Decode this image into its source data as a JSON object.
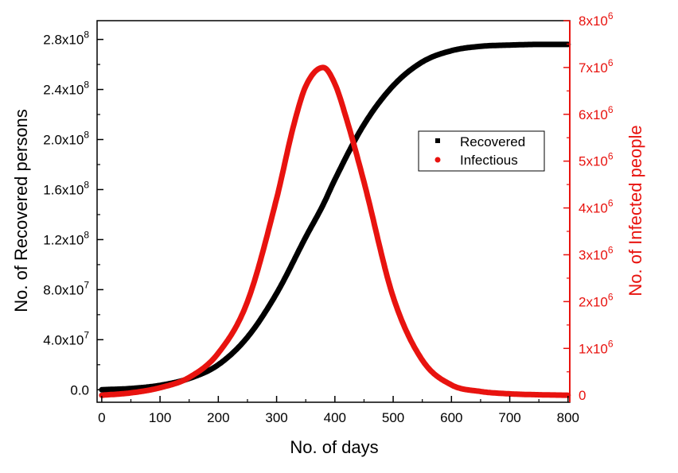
{
  "chart_data": {
    "type": "line",
    "title": "",
    "xlabel": "No. of days",
    "ylabel_left": "No. of Recovered persons",
    "ylabel_right": "No. of Infected people",
    "xlim": [
      -8,
      803
    ],
    "ylim_left": [
      -10000000.0,
      295000000.0
    ],
    "ylim_right": [
      -150000.0,
      8000000.0
    ],
    "x_ticks": [
      0,
      100,
      200,
      300,
      400,
      500,
      600,
      700,
      800
    ],
    "x_tick_labels": [
      "0",
      "100",
      "200",
      "300",
      "400",
      "500",
      "600",
      "700",
      "800"
    ],
    "y_left_ticks": [
      0,
      40000000.0,
      80000000.0,
      120000000.0,
      160000000.0,
      200000000.0,
      240000000.0,
      280000000.0
    ],
    "y_left_tick_labels": [
      {
        "mantissa": "0.0",
        "exp": ""
      },
      {
        "mantissa": "4.0x10",
        "exp": "7"
      },
      {
        "mantissa": "8.0x10",
        "exp": "7"
      },
      {
        "mantissa": "1.2x10",
        "exp": "8"
      },
      {
        "mantissa": "1.6x10",
        "exp": "8"
      },
      {
        "mantissa": "2.0x10",
        "exp": "8"
      },
      {
        "mantissa": "2.4x10",
        "exp": "8"
      },
      {
        "mantissa": "2.8x10",
        "exp": "8"
      }
    ],
    "y_right_ticks": [
      0,
      1000000.0,
      2000000.0,
      3000000.0,
      4000000.0,
      5000000.0,
      6000000.0,
      7000000.0,
      8000000.0
    ],
    "y_right_tick_labels": [
      {
        "mantissa": "0",
        "exp": ""
      },
      {
        "mantissa": "1x10",
        "exp": "6"
      },
      {
        "mantissa": "2x10",
        "exp": "6"
      },
      {
        "mantissa": "3x10",
        "exp": "6"
      },
      {
        "mantissa": "4x10",
        "exp": "6"
      },
      {
        "mantissa": "5x10",
        "exp": "6"
      },
      {
        "mantissa": "6x10",
        "exp": "6"
      },
      {
        "mantissa": "7x10",
        "exp": "6"
      },
      {
        "mantissa": "8x10",
        "exp": "6"
      }
    ],
    "legend": {
      "placement": "center-right",
      "entries": [
        {
          "label": "Recovered",
          "color": "#000000",
          "marker": "square"
        },
        {
          "label": "Infectious",
          "color": "#e8130f",
          "marker": "circle"
        }
      ]
    },
    "series": [
      {
        "name": "Recovered",
        "axis": "left",
        "color": "#000000",
        "x": [
          0,
          50,
          100,
          150,
          200,
          250,
          300,
          350,
          380,
          400,
          450,
          500,
          550,
          600,
          650,
          700,
          750,
          800
        ],
        "values": [
          0,
          1000000.0,
          3500000.0,
          9000000.0,
          20000000.0,
          42000000.0,
          77000000.0,
          122000000.0,
          148000000.0,
          168000000.0,
          212000000.0,
          243000000.0,
          262000000.0,
          271000000.0,
          274500000.0,
          275500000.0,
          276000000.0,
          276000000.0
        ]
      },
      {
        "name": "Infectious",
        "axis": "right",
        "color": "#e8130f",
        "x": [
          0,
          50,
          100,
          150,
          200,
          250,
          300,
          330,
          350,
          380,
          400,
          420,
          450,
          500,
          550,
          600,
          650,
          700,
          750,
          800
        ],
        "values": [
          0,
          50000.0,
          160000.0,
          380000.0,
          900000.0,
          2000000.0,
          4200000.0,
          5800000.0,
          6600000.0,
          7000000.0,
          6650000.0,
          5900000.0,
          4550000.0,
          2100000.0,
          750000.0,
          220000.0,
          80000.0,
          30000.0,
          10000.0,
          0
        ]
      }
    ]
  }
}
